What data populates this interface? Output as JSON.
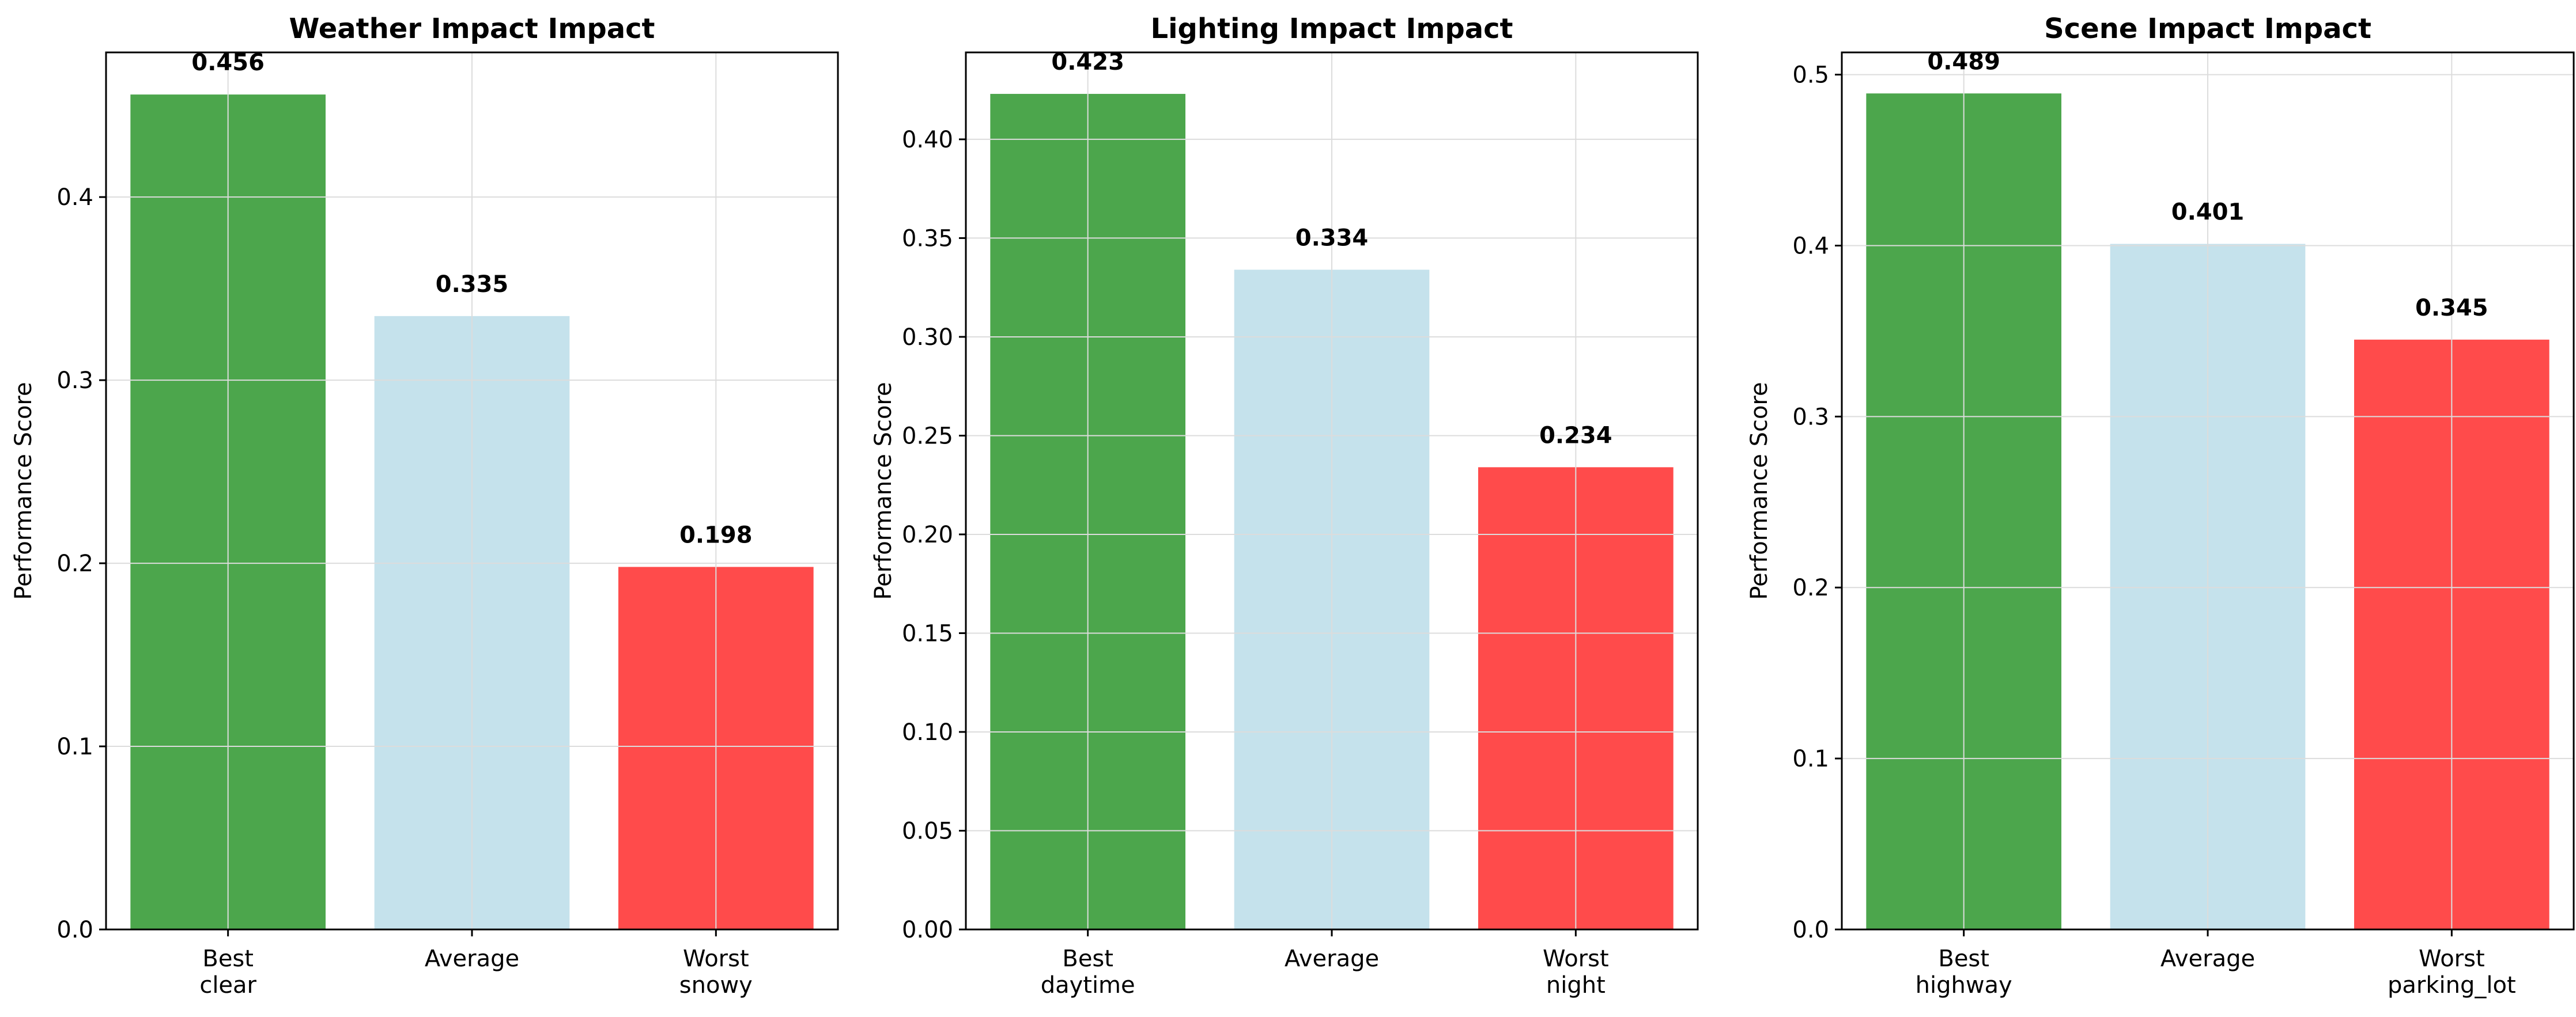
{
  "chart_data": [
    {
      "type": "bar",
      "title": "Weather Impact Impact",
      "ylabel": "Performance Score",
      "xlabel": "",
      "categories": [
        [
          "Best",
          "clear"
        ],
        [
          "Average"
        ],
        [
          "Worst",
          "snowy"
        ]
      ],
      "values": [
        0.456,
        0.335,
        0.198
      ],
      "value_labels": [
        "0.456",
        "0.335",
        "0.198"
      ],
      "colors": [
        "#4ca64c",
        "#c5e2ec",
        "#ff4b4b"
      ],
      "ylim": [
        0,
        0.479
      ],
      "yticks": [
        0.0,
        0.1,
        0.2,
        0.3,
        0.4
      ],
      "ytick_labels": [
        "0.0",
        "0.1",
        "0.2",
        "0.3",
        "0.4"
      ],
      "grid": true
    },
    {
      "type": "bar",
      "title": "Lighting Impact Impact",
      "ylabel": "Performance Score",
      "xlabel": "",
      "categories": [
        [
          "Best",
          "daytime"
        ],
        [
          "Average"
        ],
        [
          "Worst",
          "night"
        ]
      ],
      "values": [
        0.423,
        0.334,
        0.234
      ],
      "value_labels": [
        "0.423",
        "0.334",
        "0.234"
      ],
      "colors": [
        "#4ca64c",
        "#c5e2ec",
        "#ff4b4b"
      ],
      "ylim": [
        0,
        0.444
      ],
      "yticks": [
        0.0,
        0.05,
        0.1,
        0.15,
        0.2,
        0.25,
        0.3,
        0.35,
        0.4
      ],
      "ytick_labels": [
        "0.00",
        "0.05",
        "0.10",
        "0.15",
        "0.20",
        "0.25",
        "0.30",
        "0.35",
        "0.40"
      ],
      "grid": true
    },
    {
      "type": "bar",
      "title": "Scene Impact Impact",
      "ylabel": "Performance Score",
      "xlabel": "",
      "categories": [
        [
          "Best",
          "highway"
        ],
        [
          "Average"
        ],
        [
          "Worst",
          "parking_lot"
        ]
      ],
      "values": [
        0.489,
        0.401,
        0.345
      ],
      "value_labels": [
        "0.489",
        "0.401",
        "0.345"
      ],
      "colors": [
        "#4ca64c",
        "#c5e2ec",
        "#ff4b4b"
      ],
      "ylim": [
        0,
        0.513
      ],
      "yticks": [
        0.0,
        0.1,
        0.2,
        0.3,
        0.4,
        0.5
      ],
      "ytick_labels": [
        "0.0",
        "0.1",
        "0.2",
        "0.3",
        "0.4",
        "0.5"
      ],
      "grid": true
    }
  ]
}
